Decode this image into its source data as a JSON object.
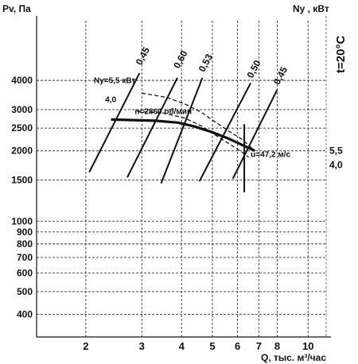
{
  "chart_data": {
    "type": "line",
    "scale": {
      "x": "log",
      "y": "log"
    },
    "grid": true,
    "ylabel": "Pv, Па",
    "ylabel_right": "Ny , кВт",
    "xlabel": "Q, тыс. м³/час",
    "temperature_label": "t=20°C",
    "x_ticks": [
      2,
      3,
      4,
      5,
      6,
      7,
      8,
      10
    ],
    "x_tick_labels": [
      "2",
      "3",
      "4",
      "5",
      "6",
      "7",
      "8",
      "10"
    ],
    "y_ticks": [
      400,
      500,
      600,
      700,
      800,
      900,
      1000,
      1500,
      2000,
      2500,
      3000,
      4000
    ],
    "y_tick_labels": [
      "400",
      "500",
      "600",
      "700",
      "800",
      "900",
      "1000",
      "1500",
      "2000",
      "2500",
      "3000",
      "4000"
    ],
    "xlim": [
      1.4,
      11.4
    ],
    "ylim": [
      320,
      7200
    ],
    "right_ticks": [
      {
        "label": "5,5",
        "at_pa": 2000
      },
      {
        "label": "4,0",
        "at_pa": 1740
      }
    ],
    "series": [
      {
        "role": "fan-curve",
        "x": [
          2.4,
          3.3,
          3.9,
          4.4,
          5.0,
          5.6,
          6.2,
          6.8
        ],
        "y": [
          2720,
          2690,
          2640,
          2540,
          2400,
          2260,
          2120,
          2000
        ]
      },
      {
        "role": "power-curve",
        "dashed": true,
        "x": [
          3.0,
          3.6,
          4.1,
          4.6,
          5.1,
          5.6,
          6.2,
          6.8
        ],
        "y": [
          3530,
          3380,
          3170,
          2930,
          2660,
          2440,
          2240,
          2000
        ]
      },
      {
        "role": "power-curve",
        "dashed": true,
        "x": [
          2.9,
          3.5,
          4.1,
          4.6,
          5.1,
          5.6,
          6.1,
          6.5
        ],
        "y": [
          2950,
          2900,
          2760,
          2560,
          2340,
          2160,
          2000,
          1880
        ]
      }
    ],
    "efficiency_lines": [
      {
        "label": "0,45",
        "x": [
          2.05,
          2.95
        ],
        "y": [
          1620,
          4300
        ]
      },
      {
        "label": "0,60",
        "x": [
          2.7,
          3.88
        ],
        "y": [
          1540,
          4100
        ]
      },
      {
        "label": "0,53",
        "x": [
          3.45,
          4.65
        ],
        "y": [
          1450,
          4100
        ]
      },
      {
        "label": "0,50",
        "x": [
          4.55,
          6.6
        ],
        "y": [
          1480,
          3900
        ]
      },
      {
        "label": "0,45",
        "x": [
          5.8,
          8.0
        ],
        "y": [
          1520,
          3650
        ]
      }
    ],
    "efficiency_label_positions": [
      {
        "x": 2.95,
        "y": 4550
      },
      {
        "x": 3.88,
        "y": 4400
      },
      {
        "x": 4.65,
        "y": 4250
      },
      {
        "x": 6.6,
        "y": 4000
      },
      {
        "x": 8.0,
        "y": 3750
      }
    ],
    "vertical_line": {
      "x": 6.3,
      "y": [
        1330,
        2600
      ]
    },
    "annotations": [
      {
        "text": "Ny=5,5 кВт",
        "x": 2.12,
        "y": 3900
      },
      {
        "text": "4,0",
        "x": 2.3,
        "y": 3230
      },
      {
        "text": "n=2860 об/мин",
        "x": 2.85,
        "y": 2870
      },
      {
        "text": "u=47,2 м/с",
        "x": 6.6,
        "y": 1880
      }
    ]
  }
}
